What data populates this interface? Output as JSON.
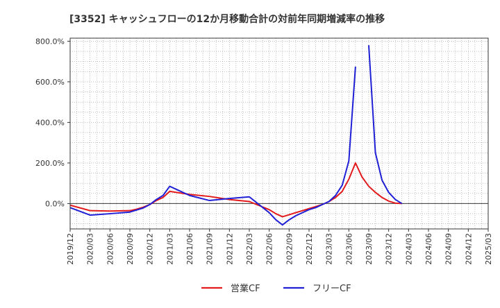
{
  "chart_data": {
    "type": "line",
    "title": "[3352]  キャッシュフローの12か月移動合計の対前年同期増減率の推移",
    "xlabel": "",
    "ylabel": "",
    "ylim": [
      -125,
      815
    ],
    "yticks": [
      0,
      200,
      400,
      600,
      800
    ],
    "ytick_labels": [
      "0.0%",
      "200.0%",
      "400.0%",
      "600.0%",
      "800.0%"
    ],
    "x_tick_labels": [
      "2019/12",
      "2020/03",
      "2020/06",
      "2020/09",
      "2020/12",
      "2021/03",
      "2021/06",
      "2021/09",
      "2021/12",
      "2022/03",
      "2022/06",
      "2022/09",
      "2022/12",
      "2023/03",
      "2023/06",
      "2023/09",
      "2023/12",
      "2024/03",
      "2024/06",
      "2024/09",
      "2024/12",
      "2025/03"
    ],
    "x_range_months": [
      0,
      63
    ],
    "grid": true,
    "legend_position": "bottom-center",
    "series": [
      {
        "name": "営業CF",
        "color": "#e31a1c",
        "x": [
          0,
          3,
          6,
          9,
          10,
          11,
          12,
          13,
          14,
          15,
          18,
          21,
          24,
          27,
          30,
          31,
          32,
          33,
          34,
          35,
          36,
          37,
          38,
          39,
          40,
          41,
          42,
          43,
          44,
          45,
          46,
          47,
          48,
          49,
          50
        ],
        "values": [
          -8,
          -35,
          -37,
          -35,
          -28,
          -18,
          -5,
          15,
          30,
          60,
          45,
          35,
          20,
          10,
          -30,
          -50,
          -65,
          -55,
          -45,
          -35,
          -25,
          -15,
          -5,
          10,
          30,
          60,
          120,
          200,
          130,
          85,
          55,
          30,
          12,
          2,
          0
        ]
      },
      {
        "name": "フリーCF",
        "color": "#1f1fd6",
        "x": [
          0,
          3,
          6,
          9,
          10,
          11,
          12,
          13,
          14,
          15,
          18,
          21,
          24,
          27,
          30,
          31,
          32,
          33,
          34,
          35,
          36,
          37,
          38,
          39,
          40,
          41,
          42,
          43,
          44,
          45,
          46,
          47,
          48,
          49,
          50
        ],
        "values": [
          -20,
          -57,
          -50,
          -42,
          -32,
          -22,
          -5,
          20,
          40,
          85,
          40,
          15,
          25,
          33,
          -45,
          -80,
          -105,
          -80,
          -60,
          -45,
          -30,
          -20,
          -5,
          10,
          40,
          90,
          210,
          675,
          null,
          780,
          250,
          115,
          55,
          20,
          0
        ]
      }
    ]
  },
  "legend": {
    "items": [
      "営業CF",
      "フリーCF"
    ]
  }
}
